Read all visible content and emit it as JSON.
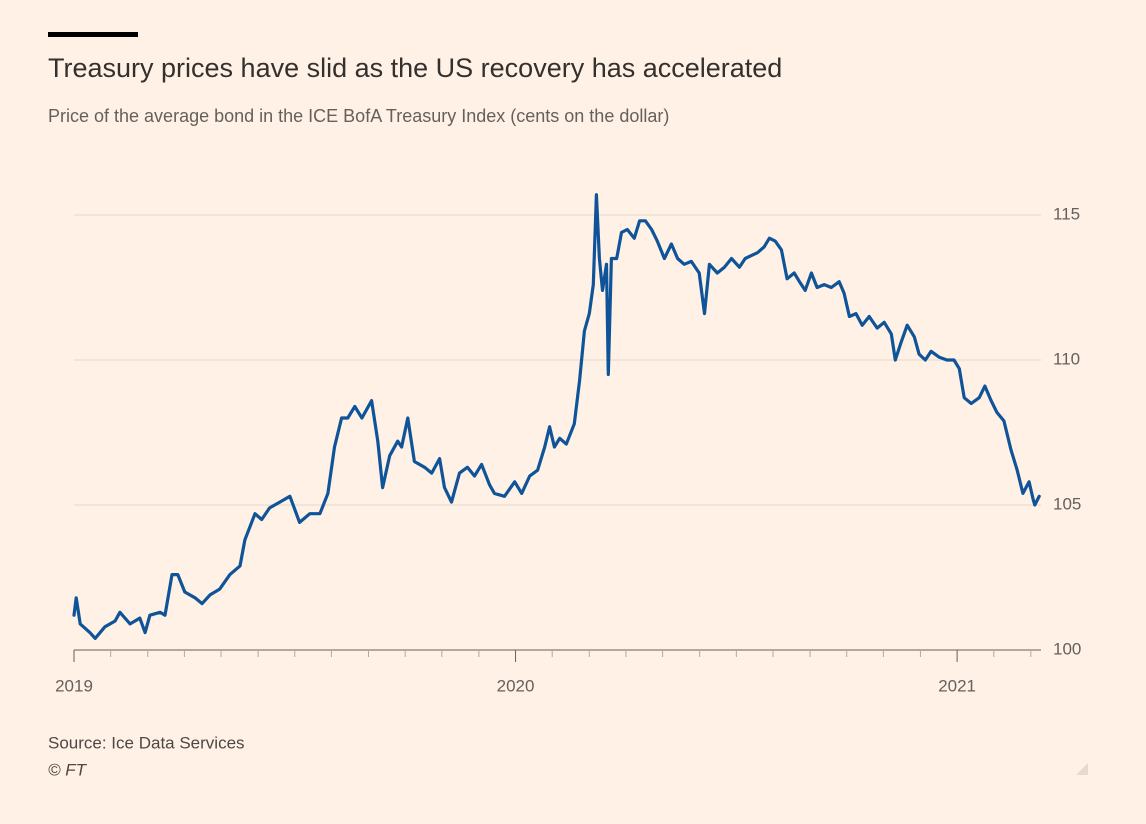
{
  "chart_data": {
    "type": "line",
    "title": "Treasury prices have slid as the US recovery has accelerated",
    "subtitle": "Price of the average bond in the ICE BofA Treasury Index (cents on the dollar)",
    "source": "Source: Ice Data Services",
    "credit": "© FT",
    "color": "#0f5499",
    "grid": true,
    "yaxis_side": "right",
    "xlim": [
      2019,
      2021.19
    ],
    "ylim": [
      100,
      116
    ],
    "xticks": [
      2019,
      2020,
      2021
    ],
    "xminorticks": [
      2019.083,
      2019.167,
      2019.25,
      2019.333,
      2019.417,
      2019.5,
      2019.583,
      2019.667,
      2019.75,
      2019.833,
      2019.917,
      2020.083,
      2020.167,
      2020.25,
      2020.333,
      2020.417,
      2020.5,
      2020.583,
      2020.667,
      2020.75,
      2020.833,
      2020.917,
      2021.083,
      2021.167
    ],
    "yticks": [
      100,
      105,
      110,
      115
    ],
    "x": [
      2019.0,
      2019.005,
      2019.014,
      2019.036,
      2019.048,
      2019.07,
      2019.093,
      2019.104,
      2019.127,
      2019.149,
      2019.161,
      2019.172,
      2019.195,
      2019.206,
      2019.222,
      2019.235,
      2019.251,
      2019.274,
      2019.29,
      2019.308,
      2019.33,
      2019.353,
      2019.376,
      2019.387,
      2019.41,
      2019.425,
      2019.443,
      2019.466,
      2019.489,
      2019.511,
      2019.534,
      2019.557,
      2019.575,
      2019.59,
      2019.606,
      2019.62,
      2019.636,
      2019.652,
      2019.674,
      2019.688,
      2019.699,
      2019.715,
      2019.733,
      2019.742,
      2019.756,
      2019.771,
      2019.794,
      2019.81,
      2019.828,
      2019.839,
      2019.855,
      2019.873,
      2019.891,
      2019.907,
      2019.923,
      2019.941,
      2019.952,
      2019.975,
      2019.998,
      2020.014,
      2020.032,
      2020.05,
      2020.066,
      2020.077,
      2020.088,
      2020.1,
      2020.115,
      2020.133,
      2020.145,
      2020.156,
      2020.167,
      2020.176,
      2020.183,
      2020.19,
      2020.197,
      2020.206,
      2020.21,
      2020.217,
      2020.229,
      2020.24,
      2020.253,
      2020.269,
      2020.281,
      2020.294,
      2020.308,
      2020.321,
      2020.337,
      2020.353,
      2020.367,
      2020.382,
      2020.398,
      2020.416,
      2020.428,
      2020.439,
      2020.457,
      2020.473,
      2020.489,
      2020.507,
      2020.52,
      2020.534,
      2020.548,
      2020.563,
      2020.575,
      2020.588,
      2020.602,
      2020.615,
      2020.631,
      2020.643,
      2020.656,
      2020.67,
      2020.683,
      2020.699,
      2020.715,
      2020.733,
      2020.744,
      2020.756,
      2020.771,
      2020.785,
      2020.801,
      2020.819,
      2020.835,
      2020.851,
      2020.86,
      2020.873,
      2020.887,
      2020.903,
      2020.914,
      2020.928,
      2020.941,
      2020.959,
      2020.977,
      2020.993,
      2021.005,
      2021.016,
      2021.032,
      2021.05,
      2021.063,
      2021.077,
      2021.09,
      2021.106,
      2021.122,
      2021.136,
      2021.149,
      2021.163,
      2021.172,
      2021.176,
      2021.186
    ],
    "values": [
      101.2,
      101.8,
      100.9,
      100.6,
      100.4,
      100.8,
      101.0,
      101.3,
      100.9,
      101.1,
      100.6,
      101.2,
      101.3,
      101.2,
      102.6,
      102.6,
      102.0,
      101.8,
      101.6,
      101.9,
      102.1,
      102.6,
      102.9,
      103.8,
      104.7,
      104.5,
      104.9,
      105.1,
      105.3,
      104.4,
      104.7,
      104.7,
      105.4,
      107.0,
      108.0,
      108.0,
      108.4,
      108.0,
      108.6,
      107.2,
      105.6,
      106.7,
      107.2,
      107.0,
      108.0,
      106.5,
      106.3,
      106.1,
      106.6,
      105.6,
      105.1,
      106.1,
      106.3,
      106.0,
      106.4,
      105.7,
      105.4,
      105.3,
      105.8,
      105.4,
      106.0,
      106.2,
      107.0,
      107.7,
      107.0,
      107.3,
      107.1,
      107.8,
      109.3,
      111.0,
      111.6,
      112.6,
      115.7,
      113.5,
      112.4,
      113.3,
      109.5,
      113.5,
      113.5,
      114.4,
      114.5,
      114.2,
      114.8,
      114.8,
      114.5,
      114.1,
      113.5,
      114.0,
      113.5,
      113.3,
      113.4,
      113.0,
      111.6,
      113.3,
      113.0,
      113.2,
      113.5,
      113.2,
      113.5,
      113.6,
      113.7,
      113.9,
      114.2,
      114.1,
      113.8,
      112.8,
      113.0,
      112.7,
      112.4,
      113.0,
      112.5,
      112.6,
      112.5,
      112.7,
      112.3,
      111.5,
      111.6,
      111.2,
      111.5,
      111.1,
      111.3,
      110.9,
      110.0,
      110.6,
      111.2,
      110.8,
      110.2,
      110.0,
      110.3,
      110.1,
      110.0,
      110.0,
      109.7,
      108.7,
      108.5,
      108.7,
      109.1,
      108.6,
      108.2,
      107.9,
      106.9,
      106.2,
      105.4,
      105.8,
      105.2,
      105.0,
      105.3
    ]
  }
}
